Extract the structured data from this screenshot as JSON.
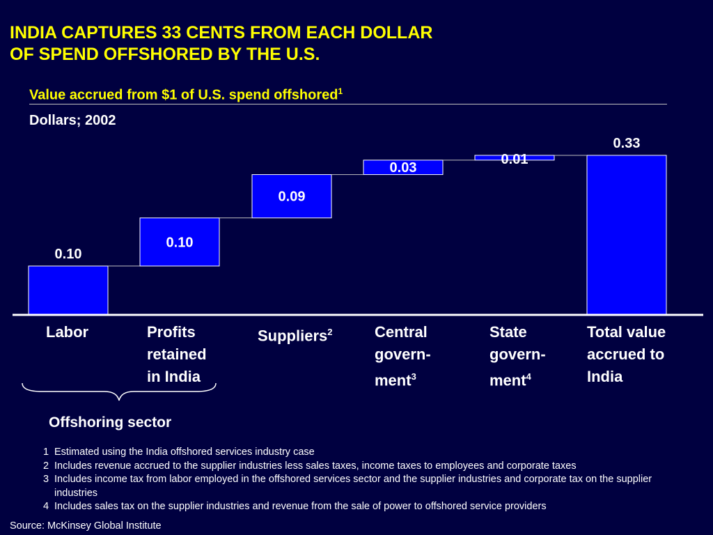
{
  "header": {
    "title_line1": "INDIA CAPTURES 33 CENTS FROM EACH DOLLAR",
    "title_line2": "OF SPEND OFFSHORED BY THE U.S.",
    "subtitle": "Value accrued from $1 of U.S. spend offshored",
    "subtitle_ref": "1",
    "units": "Dollars; 2002"
  },
  "chart_data": {
    "type": "bar",
    "subtype": "waterfall",
    "categories": [
      "Labor",
      "Profits retained in India",
      "Suppliers",
      "Central government",
      "State government",
      "Total value accrued to India"
    ],
    "values": [
      0.1,
      0.1,
      0.09,
      0.03,
      0.01,
      0.33
    ],
    "is_total": [
      false,
      false,
      false,
      false,
      false,
      true
    ],
    "value_labels": [
      "0.10",
      "0.10",
      "0.09",
      "0.03",
      "0.01",
      "0.33"
    ],
    "ylim": [
      0,
      0.35
    ],
    "grid": false,
    "bar_color": "#0000ff",
    "bar_edge_color": "#ffffff",
    "connector_color": "#c0c0c0"
  },
  "categories": {
    "labor": "Labor",
    "profits_line1": "Profits",
    "profits_line2": "retained",
    "profits_line3": "in India",
    "suppliers": "Suppliers",
    "suppliers_ref": "2",
    "central_line1": "Central",
    "central_line2": "govern-",
    "central_line3": "ment",
    "central_ref": "3",
    "state_line1": "State",
    "state_line2": "govern-",
    "state_line3": "ment",
    "state_ref": "4",
    "total_line1": "Total value",
    "total_line2": "accrued to",
    "total_line3": "India"
  },
  "group_label": "Offshoring  sector",
  "footnotes": [
    {
      "num": "1",
      "text": "Estimated using the India offshored services industry case"
    },
    {
      "num": "2",
      "text": "Includes revenue accrued to the supplier industries less sales taxes, income taxes to employees and corporate taxes"
    },
    {
      "num": "3",
      "text": "Includes income tax from labor employed in the offshored services sector and the supplier industries and corporate tax on the supplier industries"
    },
    {
      "num": "4",
      "text": "Includes sales tax on the supplier industries and revenue from the sale of power to offshored service providers"
    }
  ],
  "source": "Source: McKinsey Global Institute"
}
